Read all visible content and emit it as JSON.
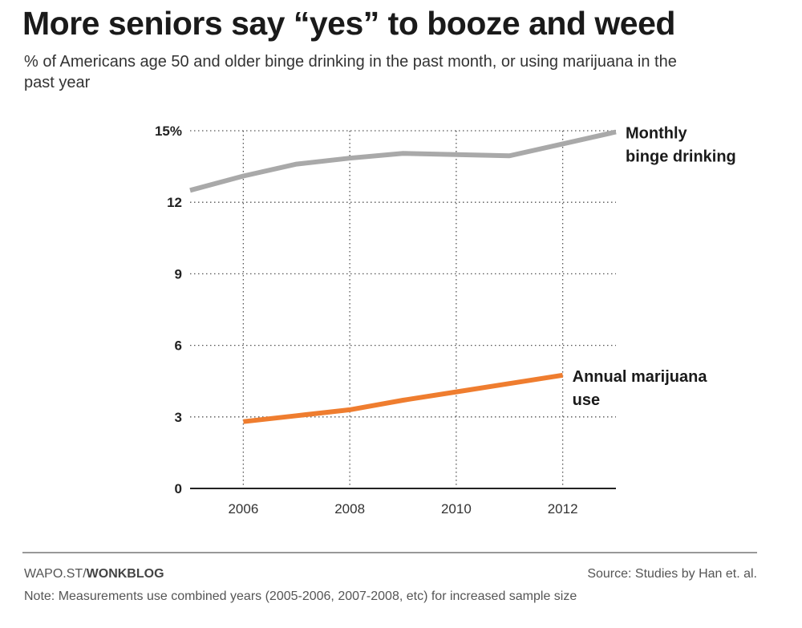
{
  "header": {
    "title": "More seniors say “yes” to booze and weed",
    "subtitle": "% of Americans age 50 and older binge drinking in the past month, or using marijuana in the past year"
  },
  "footer": {
    "credit_prefix": "WAPO.ST/",
    "credit_strong": "WONKBLOG",
    "source": "Source: Studies by Han et. al.",
    "note": "Note: Measurements use combined years (2005-2006, 2007-2008, etc) for increased sample size"
  },
  "chart_data": {
    "type": "line",
    "title": "More seniors say “yes” to booze and weed",
    "subtitle": "% of Americans age 50 and older binge drinking in the past month, or using marijuana in the past year",
    "xlabel": "",
    "ylabel": "",
    "xlim": [
      2005,
      2013
    ],
    "ylim": [
      0,
      15
    ],
    "x_ticks": [
      2006,
      2008,
      2010,
      2012
    ],
    "x_tick_labels": [
      "2006",
      "2008",
      "2010",
      "2012"
    ],
    "y_ticks": [
      0,
      3,
      6,
      9,
      12,
      15
    ],
    "y_tick_labels": [
      "0",
      "3",
      "6",
      "9",
      "12",
      "15%"
    ],
    "grid": true,
    "legend": "direct labels at line ends",
    "series": [
      {
        "name": "Monthly binge drinking",
        "label_lines": [
          "Monthly",
          "binge drinking"
        ],
        "color": "#a9a9a9",
        "points": [
          [
            2005,
            12.5
          ],
          [
            2006,
            13.1
          ],
          [
            2007,
            13.6
          ],
          [
            2008,
            13.85
          ],
          [
            2009,
            14.05
          ],
          [
            2010,
            14.0
          ],
          [
            2011,
            13.95
          ],
          [
            2012,
            14.45
          ],
          [
            2013,
            14.95
          ]
        ]
      },
      {
        "name": "Annual marijuana use",
        "label_lines": [
          "Annual marijuana",
          "use"
        ],
        "color": "#ef7d2f",
        "points": [
          [
            2006,
            2.8
          ],
          [
            2007,
            3.05
          ],
          [
            2008,
            3.3
          ],
          [
            2009,
            3.7
          ],
          [
            2010,
            4.05
          ],
          [
            2011,
            4.4
          ],
          [
            2012,
            4.75
          ]
        ]
      }
    ]
  }
}
